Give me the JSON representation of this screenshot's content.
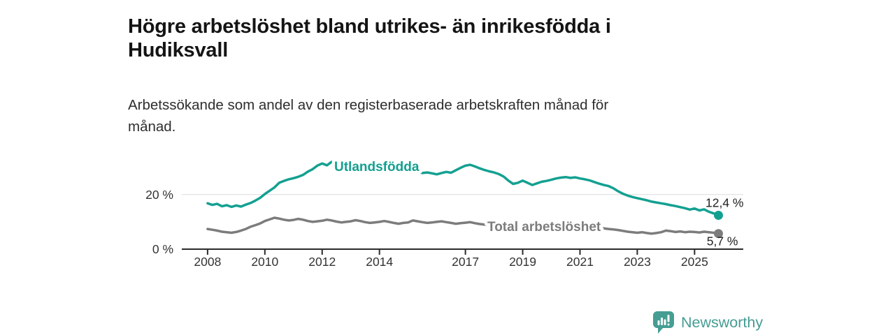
{
  "header": {
    "title": "Högre arbetslöshet bland utrikes- än inrikesfödda i Hudiksvall",
    "title_lines": [
      "Högre arbetslöshet bland utrikes- än inrikesfödda i",
      "Hudiksvall"
    ],
    "subtitle": "Arbetssökande som andel av den registerbaserade arbetskraften månad för månad.",
    "subtitle_lines": [
      "Arbetssökande som andel av den registerbaserade arbetskraften månad för",
      "månad."
    ]
  },
  "chart_data": {
    "type": "line",
    "title": "Högre arbetslöshet bland utrikes- än inrikesfödda i Hudiksvall",
    "subtitle": "Arbetssökande som andel av den registerbaserade arbetskraften månad för månad.",
    "unit": "%",
    "frequency": "monthly",
    "grid": "single horizontal gridline at 20 %",
    "legend_position": "inline labels on lines",
    "x_axis": {
      "ticks": [
        2008,
        2010,
        2012,
        2014,
        2017,
        2019,
        2021,
        2023,
        2025
      ],
      "range": [
        2007.1,
        2026.7
      ]
    },
    "y_axis": {
      "ticks": [
        {
          "value": 0,
          "label": "0 %"
        },
        {
          "value": 20,
          "label": "20 %"
        }
      ],
      "range": [
        0,
        34
      ],
      "gridlines": [
        20
      ]
    },
    "series": [
      {
        "name": "Utlandsfödda",
        "color": "#14a091",
        "end_value": 12.4,
        "end_label": "12,4 %",
        "x_start": 2008.0,
        "x_step": 0.166667,
        "values": [
          16.8,
          16.2,
          16.6,
          15.7,
          16.1,
          15.5,
          16.0,
          15.6,
          16.3,
          16.9,
          17.8,
          18.8,
          20.2,
          21.4,
          22.6,
          24.3,
          25.0,
          25.6,
          26.0,
          26.5,
          27.2,
          28.4,
          29.3,
          30.6,
          31.4,
          30.7,
          32.0,
          31.3,
          31.6,
          30.8,
          30.3,
          30.7,
          30.1,
          29.7,
          30.0,
          29.5,
          29.8,
          30.1,
          29.4,
          29.0,
          29.3,
          28.7,
          28.9,
          28.5,
          28.2,
          27.9,
          28.1,
          27.8,
          27.4,
          27.9,
          28.3,
          28.0,
          28.9,
          29.8,
          30.6,
          30.9,
          30.3,
          29.6,
          29.0,
          28.5,
          28.1,
          27.5,
          26.6,
          25.1,
          23.9,
          24.3,
          25.1,
          24.3,
          23.5,
          24.1,
          24.7,
          25.0,
          25.4,
          25.9,
          26.2,
          26.4,
          26.1,
          26.3,
          25.9,
          25.6,
          25.2,
          24.6,
          24.0,
          23.5,
          23.1,
          22.3,
          21.2,
          20.3,
          19.6,
          19.1,
          18.7,
          18.3,
          17.9,
          17.4,
          17.1,
          16.8,
          16.5,
          16.1,
          15.8,
          15.4,
          15.0,
          14.5,
          14.9,
          14.2,
          14.6,
          13.7,
          13.1,
          12.4
        ]
      },
      {
        "name": "Total arbetslöshet",
        "color": "#7c7c7c",
        "end_value": 5.7,
        "end_label": "5,7 %",
        "x_start": 2008.0,
        "x_step": 0.166667,
        "values": [
          7.4,
          7.1,
          6.8,
          6.4,
          6.2,
          6.0,
          6.3,
          6.8,
          7.4,
          8.2,
          8.8,
          9.4,
          10.3,
          10.9,
          11.5,
          11.2,
          10.8,
          10.5,
          10.7,
          11.1,
          10.8,
          10.3,
          10.0,
          10.2,
          10.4,
          10.8,
          10.5,
          10.1,
          9.8,
          10.0,
          10.2,
          10.6,
          10.3,
          9.9,
          9.6,
          9.8,
          10.0,
          10.3,
          10.0,
          9.6,
          9.3,
          9.6,
          9.8,
          10.5,
          10.2,
          9.9,
          9.6,
          9.8,
          10.0,
          10.2,
          9.9,
          9.6,
          9.3,
          9.5,
          9.7,
          9.9,
          9.5,
          9.2,
          9.0,
          8.8,
          9.1,
          9.3,
          9.0,
          8.7,
          8.5,
          8.6,
          8.8,
          8.6,
          8.3,
          8.1,
          8.0,
          8.2,
          8.5,
          9.0,
          9.4,
          9.5,
          9.3,
          9.1,
          8.9,
          8.7,
          8.4,
          8.1,
          7.8,
          7.6,
          7.4,
          7.2,
          7.0,
          6.7,
          6.4,
          6.2,
          6.0,
          6.2,
          5.9,
          5.7,
          5.9,
          6.2,
          6.8,
          6.6,
          6.3,
          6.5,
          6.2,
          6.4,
          6.3,
          6.1,
          6.4,
          6.2,
          6.0,
          5.7
        ]
      }
    ],
    "colors": {
      "axis": "#2b2b2b",
      "gridline": "#dcdcdc",
      "tick_text": "#333333",
      "value_label_text": "#222222"
    }
  },
  "footer": {
    "brand": "Newsworthy",
    "brand_color": "#459d93",
    "logo_icon": "speech-bubble-bar-chart"
  }
}
